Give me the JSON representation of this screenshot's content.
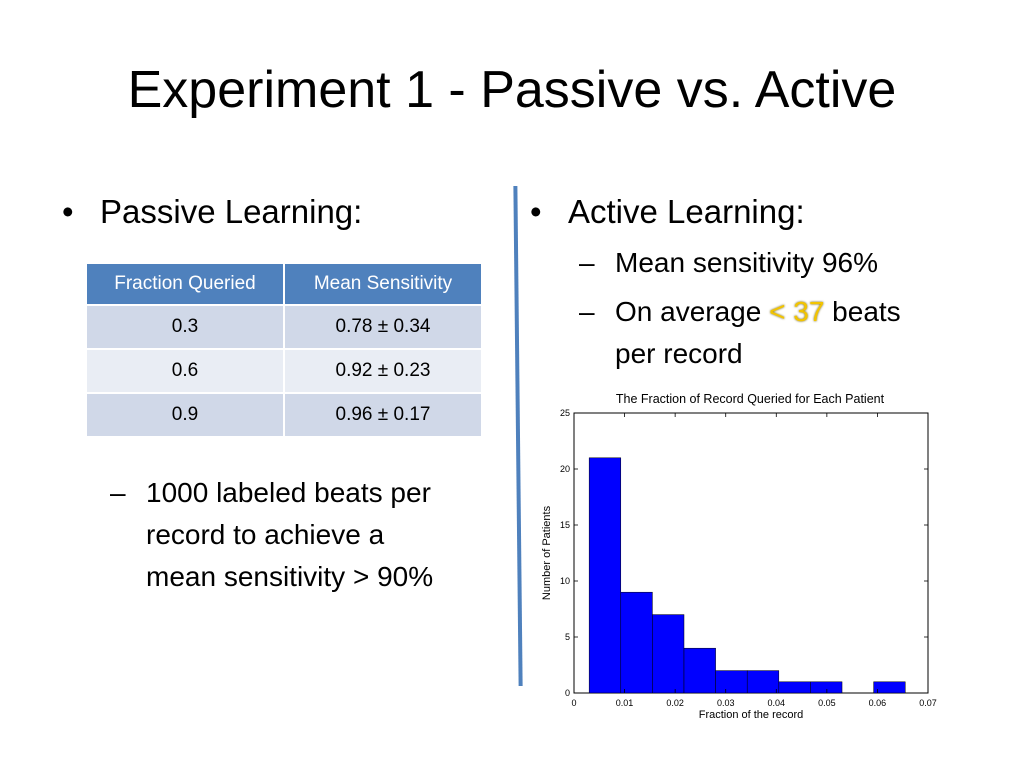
{
  "slide": {
    "title": "Experiment 1 - Passive vs. Active",
    "left": {
      "bullet": "Passive Learning:",
      "table": {
        "headers": [
          "Fraction Queried",
          "Mean Sensitivity"
        ],
        "rows": [
          [
            "0.3",
            "0.78 ± 0.34"
          ],
          [
            "0.6",
            "0.92 ± 0.23"
          ],
          [
            "0.9",
            "0.96 ± 0.17"
          ]
        ]
      },
      "sub_line1": "1000 labeled beats per",
      "sub_line2": "record to achieve a",
      "sub_line3": "mean sensitivity > 90%"
    },
    "right": {
      "bullet": "Active Learning:",
      "sub1": "Mean sensitivity 96%",
      "sub2_before": "On average",
      "sub2_highlight": "< 37",
      "sub2_after": "beats",
      "sub2_line2": "per record"
    },
    "bullet_glyph": "•",
    "dash_glyph": "–",
    "colors": {
      "accent": "#4f81bd",
      "highlight": "#f2c400",
      "bar": "#0000ff"
    }
  },
  "chart_data": {
    "type": "bar",
    "title": "The Fraction of Record Queried for Each Patient",
    "xlabel": "Fraction of the record",
    "ylabel": "Number of Patients",
    "xlim": [
      0,
      0.07
    ],
    "ylim": [
      0,
      25
    ],
    "xticks": [
      "0",
      "0.01",
      "0.02",
      "0.03",
      "0.04",
      "0.05",
      "0.06",
      "0.07"
    ],
    "yticks": [
      "0",
      "5",
      "10",
      "15",
      "20",
      "25"
    ],
    "bin_width": 0.00625,
    "bins": [
      {
        "x0": 0.003,
        "value": 21
      },
      {
        "x0": 0.00925,
        "value": 9
      },
      {
        "x0": 0.0155,
        "value": 7
      },
      {
        "x0": 0.02175,
        "value": 4
      },
      {
        "x0": 0.028,
        "value": 2
      },
      {
        "x0": 0.03425,
        "value": 2
      },
      {
        "x0": 0.0405,
        "value": 1
      },
      {
        "x0": 0.04675,
        "value": 1
      },
      {
        "x0": 0.053,
        "value": 0
      },
      {
        "x0": 0.05925,
        "value": 1
      }
    ]
  }
}
